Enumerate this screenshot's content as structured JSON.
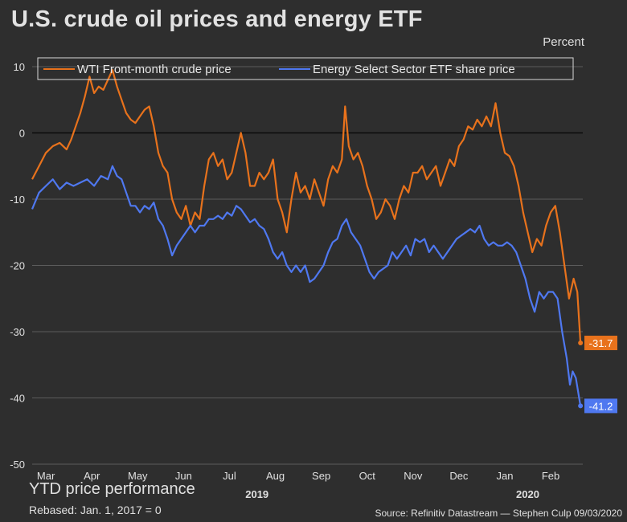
{
  "header": {
    "title": "U.S. crude oil prices and energy ETF",
    "units": "Percent"
  },
  "footer": {
    "subtitle": "YTD price performance",
    "rebased": "Rebased: Jan. 1, 2017 = 0",
    "source": "Source: Refinitiv Datastream —  Stephen Culp 09/03/2020"
  },
  "chart_data": {
    "type": "line",
    "x_range": [
      0,
      12
    ],
    "ylim": [
      -50,
      10
    ],
    "y_ticks": [
      10,
      0,
      -10,
      -20,
      -30,
      -40,
      -50
    ],
    "x_ticks": [
      {
        "x": 0.3,
        "label": "Mar"
      },
      {
        "x": 1.3,
        "label": "Apr"
      },
      {
        "x": 2.3,
        "label": "May"
      },
      {
        "x": 3.3,
        "label": "Jun"
      },
      {
        "x": 4.3,
        "label": "Jul"
      },
      {
        "x": 5.3,
        "label": "Aug"
      },
      {
        "x": 6.3,
        "label": "Sep"
      },
      {
        "x": 7.3,
        "label": "Oct"
      },
      {
        "x": 8.3,
        "label": "Nov"
      },
      {
        "x": 9.3,
        "label": "Dec"
      },
      {
        "x": 10.3,
        "label": "Jan"
      },
      {
        "x": 11.3,
        "label": "Feb"
      }
    ],
    "year_labels": [
      {
        "x": 4.9,
        "label": "2019"
      },
      {
        "x": 10.8,
        "label": "2020"
      }
    ],
    "grid": true,
    "zero_line": true,
    "legend_position": "top",
    "series": [
      {
        "name": "WTI Front-month crude price",
        "color": "#e8721c",
        "end_label": "-31.7",
        "points": [
          [
            0.0,
            -7
          ],
          [
            0.15,
            -5
          ],
          [
            0.3,
            -3
          ],
          [
            0.45,
            -2
          ],
          [
            0.6,
            -1.5
          ],
          [
            0.75,
            -2.5
          ],
          [
            0.85,
            -1
          ],
          [
            0.95,
            1
          ],
          [
            1.05,
            3
          ],
          [
            1.15,
            5.5
          ],
          [
            1.25,
            8.5
          ],
          [
            1.35,
            6
          ],
          [
            1.45,
            7
          ],
          [
            1.55,
            6.5
          ],
          [
            1.65,
            8
          ],
          [
            1.75,
            9.5
          ],
          [
            1.85,
            7
          ],
          [
            1.95,
            5
          ],
          [
            2.05,
            3
          ],
          [
            2.15,
            2
          ],
          [
            2.25,
            1.5
          ],
          [
            2.35,
            2.5
          ],
          [
            2.45,
            3.5
          ],
          [
            2.55,
            4
          ],
          [
            2.65,
            1
          ],
          [
            2.75,
            -3
          ],
          [
            2.85,
            -5
          ],
          [
            2.95,
            -6
          ],
          [
            3.05,
            -10
          ],
          [
            3.15,
            -12
          ],
          [
            3.25,
            -13
          ],
          [
            3.35,
            -11
          ],
          [
            3.45,
            -14
          ],
          [
            3.55,
            -12
          ],
          [
            3.65,
            -13
          ],
          [
            3.75,
            -8
          ],
          [
            3.85,
            -4
          ],
          [
            3.95,
            -3
          ],
          [
            4.05,
            -5
          ],
          [
            4.15,
            -4
          ],
          [
            4.25,
            -7
          ],
          [
            4.35,
            -6
          ],
          [
            4.45,
            -3
          ],
          [
            4.55,
            0
          ],
          [
            4.65,
            -3
          ],
          [
            4.75,
            -8
          ],
          [
            4.85,
            -8
          ],
          [
            4.95,
            -6
          ],
          [
            5.05,
            -7
          ],
          [
            5.15,
            -6
          ],
          [
            5.25,
            -4
          ],
          [
            5.35,
            -10
          ],
          [
            5.45,
            -12
          ],
          [
            5.55,
            -15
          ],
          [
            5.65,
            -10
          ],
          [
            5.75,
            -6
          ],
          [
            5.85,
            -9
          ],
          [
            5.95,
            -8
          ],
          [
            6.05,
            -10
          ],
          [
            6.15,
            -7
          ],
          [
            6.25,
            -9
          ],
          [
            6.35,
            -11
          ],
          [
            6.45,
            -7
          ],
          [
            6.55,
            -5
          ],
          [
            6.65,
            -6
          ],
          [
            6.75,
            -4
          ],
          [
            6.82,
            4
          ],
          [
            6.9,
            -2
          ],
          [
            7.0,
            -4
          ],
          [
            7.1,
            -3
          ],
          [
            7.2,
            -5
          ],
          [
            7.3,
            -8
          ],
          [
            7.4,
            -10
          ],
          [
            7.5,
            -13
          ],
          [
            7.6,
            -12
          ],
          [
            7.7,
            -10
          ],
          [
            7.8,
            -11
          ],
          [
            7.9,
            -13
          ],
          [
            8.0,
            -10
          ],
          [
            8.1,
            -8
          ],
          [
            8.2,
            -9
          ],
          [
            8.3,
            -6
          ],
          [
            8.4,
            -6
          ],
          [
            8.5,
            -5
          ],
          [
            8.6,
            -7
          ],
          [
            8.7,
            -6
          ],
          [
            8.8,
            -5
          ],
          [
            8.9,
            -8
          ],
          [
            9.0,
            -6
          ],
          [
            9.1,
            -4
          ],
          [
            9.2,
            -5
          ],
          [
            9.3,
            -2
          ],
          [
            9.4,
            -1
          ],
          [
            9.5,
            1
          ],
          [
            9.6,
            0.5
          ],
          [
            9.7,
            2
          ],
          [
            9.8,
            1
          ],
          [
            9.9,
            2.5
          ],
          [
            10.0,
            1
          ],
          [
            10.1,
            4.5
          ],
          [
            10.2,
            0
          ],
          [
            10.3,
            -3
          ],
          [
            10.4,
            -3.5
          ],
          [
            10.5,
            -5
          ],
          [
            10.6,
            -8
          ],
          [
            10.7,
            -12
          ],
          [
            10.8,
            -15
          ],
          [
            10.9,
            -18
          ],
          [
            11.0,
            -16
          ],
          [
            11.1,
            -17
          ],
          [
            11.2,
            -14
          ],
          [
            11.3,
            -12
          ],
          [
            11.4,
            -11
          ],
          [
            11.5,
            -15
          ],
          [
            11.6,
            -20
          ],
          [
            11.7,
            -25
          ],
          [
            11.8,
            -22
          ],
          [
            11.88,
            -24
          ],
          [
            11.95,
            -31.7
          ]
        ]
      },
      {
        "name": "Energy Select Sector ETF share price",
        "color": "#4f78f0",
        "end_label": "-41.2",
        "points": [
          [
            0.0,
            -11.5
          ],
          [
            0.15,
            -9
          ],
          [
            0.3,
            -8
          ],
          [
            0.45,
            -7
          ],
          [
            0.6,
            -8.5
          ],
          [
            0.75,
            -7.5
          ],
          [
            0.9,
            -8
          ],
          [
            1.05,
            -7.5
          ],
          [
            1.2,
            -7
          ],
          [
            1.35,
            -8
          ],
          [
            1.5,
            -6.5
          ],
          [
            1.65,
            -7
          ],
          [
            1.75,
            -5
          ],
          [
            1.85,
            -6.5
          ],
          [
            1.95,
            -7
          ],
          [
            2.05,
            -9
          ],
          [
            2.15,
            -11
          ],
          [
            2.25,
            -11
          ],
          [
            2.35,
            -12
          ],
          [
            2.45,
            -11
          ],
          [
            2.55,
            -11.5
          ],
          [
            2.65,
            -10.5
          ],
          [
            2.75,
            -13
          ],
          [
            2.85,
            -14
          ],
          [
            2.95,
            -16
          ],
          [
            3.05,
            -18.5
          ],
          [
            3.15,
            -17
          ],
          [
            3.25,
            -16
          ],
          [
            3.35,
            -15
          ],
          [
            3.45,
            -14
          ],
          [
            3.55,
            -15
          ],
          [
            3.65,
            -14
          ],
          [
            3.75,
            -14
          ],
          [
            3.85,
            -13
          ],
          [
            3.95,
            -13
          ],
          [
            4.05,
            -12.5
          ],
          [
            4.15,
            -13
          ],
          [
            4.25,
            -12
          ],
          [
            4.35,
            -12.5
          ],
          [
            4.45,
            -11
          ],
          [
            4.55,
            -11.5
          ],
          [
            4.65,
            -12.5
          ],
          [
            4.75,
            -13.5
          ],
          [
            4.85,
            -13
          ],
          [
            4.95,
            -14
          ],
          [
            5.05,
            -14.5
          ],
          [
            5.15,
            -16
          ],
          [
            5.25,
            -18
          ],
          [
            5.35,
            -19
          ],
          [
            5.45,
            -18
          ],
          [
            5.55,
            -20
          ],
          [
            5.65,
            -21
          ],
          [
            5.75,
            -20
          ],
          [
            5.85,
            -21
          ],
          [
            5.95,
            -20
          ],
          [
            6.05,
            -22.5
          ],
          [
            6.15,
            -22
          ],
          [
            6.25,
            -21
          ],
          [
            6.35,
            -20
          ],
          [
            6.45,
            -18
          ],
          [
            6.55,
            -16.5
          ],
          [
            6.65,
            -16
          ],
          [
            6.75,
            -14
          ],
          [
            6.85,
            -13
          ],
          [
            6.95,
            -15
          ],
          [
            7.05,
            -16
          ],
          [
            7.15,
            -17
          ],
          [
            7.25,
            -19
          ],
          [
            7.35,
            -21
          ],
          [
            7.45,
            -22
          ],
          [
            7.55,
            -21
          ],
          [
            7.65,
            -20.5
          ],
          [
            7.75,
            -20
          ],
          [
            7.85,
            -18
          ],
          [
            7.95,
            -19
          ],
          [
            8.05,
            -18
          ],
          [
            8.15,
            -17
          ],
          [
            8.25,
            -18.5
          ],
          [
            8.35,
            -16
          ],
          [
            8.45,
            -16.5
          ],
          [
            8.55,
            -16
          ],
          [
            8.65,
            -18
          ],
          [
            8.75,
            -17
          ],
          [
            8.85,
            -18
          ],
          [
            8.95,
            -19
          ],
          [
            9.05,
            -18
          ],
          [
            9.15,
            -17
          ],
          [
            9.25,
            -16
          ],
          [
            9.35,
            -15.5
          ],
          [
            9.45,
            -15
          ],
          [
            9.55,
            -14.5
          ],
          [
            9.65,
            -15
          ],
          [
            9.75,
            -14
          ],
          [
            9.85,
            -16
          ],
          [
            9.95,
            -17
          ],
          [
            10.05,
            -16.5
          ],
          [
            10.15,
            -17
          ],
          [
            10.25,
            -17
          ],
          [
            10.35,
            -16.5
          ],
          [
            10.45,
            -17
          ],
          [
            10.55,
            -18
          ],
          [
            10.65,
            -20
          ],
          [
            10.75,
            -22
          ],
          [
            10.85,
            -25
          ],
          [
            10.95,
            -27
          ],
          [
            11.05,
            -24
          ],
          [
            11.15,
            -25
          ],
          [
            11.25,
            -24
          ],
          [
            11.35,
            -24
          ],
          [
            11.45,
            -25
          ],
          [
            11.55,
            -30
          ],
          [
            11.65,
            -34
          ],
          [
            11.72,
            -38
          ],
          [
            11.78,
            -36
          ],
          [
            11.85,
            -37
          ],
          [
            11.95,
            -41.2
          ]
        ]
      }
    ]
  }
}
